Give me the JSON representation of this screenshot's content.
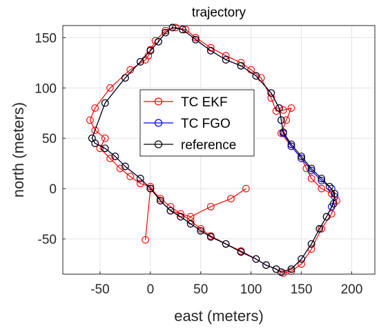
{
  "chart_data": {
    "type": "line",
    "title": "trajectory",
    "xlabel": "east (meters)",
    "ylabel": "north (meters)",
    "xlim": [
      -87,
      223
    ],
    "ylim": [
      -85,
      162
    ],
    "xticks": [
      -50,
      0,
      50,
      100,
      150,
      200
    ],
    "yticks": [
      -50,
      0,
      50,
      100,
      150
    ],
    "xtick_labels": [
      "-50",
      "0",
      "50",
      "100",
      "150",
      "200"
    ],
    "ytick_labels": [
      "-50",
      "0",
      "50",
      "100",
      "150"
    ],
    "grid": true,
    "legend_position": "center-left",
    "series": [
      {
        "name": "TC EKF",
        "color": "#ff0000",
        "x": [
          -5,
          0,
          10,
          20,
          30,
          40,
          50,
          60,
          75,
          90,
          105,
          115,
          125,
          132,
          140,
          150,
          160,
          170,
          180,
          185,
          180,
          170,
          160,
          155,
          150,
          140,
          130,
          135,
          140,
          132,
          125,
          120,
          110,
          100,
          90,
          75,
          60,
          45,
          35,
          25,
          15,
          5,
          0,
          -2,
          -5,
          -20,
          -40,
          -55,
          -60,
          -55,
          -45,
          -50,
          -40,
          -30,
          -20,
          -10,
          0,
          10,
          20,
          40,
          60,
          80,
          95
        ],
        "y": [
          -51,
          0,
          -10,
          -18,
          -25,
          -32,
          -40,
          -47,
          -55,
          -62,
          -70,
          -76,
          -80,
          -84,
          -82,
          -75,
          -60,
          -40,
          -25,
          -12,
          -5,
          0,
          10,
          20,
          30,
          42,
          55,
          68,
          80,
          78,
          77,
          90,
          110,
          118,
          125,
          132,
          140,
          150,
          158,
          160,
          157,
          147,
          138,
          132,
          128,
          118,
          100,
          80,
          68,
          58,
          50,
          40,
          30,
          20,
          12,
          5,
          2,
          -12,
          -22,
          -28,
          -18,
          -10,
          0
        ]
      },
      {
        "name": "TC FGO",
        "color": "#0000ff",
        "x": [
          0,
          10,
          20,
          30,
          40,
          50,
          60,
          75,
          90,
          105,
          115,
          125,
          130,
          140,
          150,
          160,
          168,
          175,
          180,
          183,
          180,
          170,
          160,
          150,
          140,
          132,
          130,
          128,
          120,
          105,
          90,
          75,
          60,
          45,
          32,
          22,
          15,
          8,
          0,
          -10,
          -25,
          -45,
          -58,
          -55,
          -45,
          -35,
          -25,
          -10,
          0
        ],
        "y": [
          0,
          -12,
          -22,
          -28,
          -35,
          -42,
          -48,
          -55,
          -63,
          -70,
          -76,
          -80,
          -83,
          -80,
          -70,
          -55,
          -40,
          -28,
          -18,
          -8,
          0,
          8,
          18,
          30,
          42,
          55,
          68,
          80,
          95,
          112,
          122,
          128,
          137,
          148,
          158,
          160,
          155,
          146,
          137,
          126,
          110,
          85,
          50,
          45,
          40,
          32,
          22,
          10,
          0
        ]
      },
      {
        "name": "reference",
        "color": "#000000",
        "x": [
          0,
          10,
          20,
          30,
          40,
          50,
          60,
          75,
          90,
          105,
          115,
          125,
          130,
          140,
          150,
          160,
          168,
          175,
          182,
          183,
          178,
          170,
          160,
          150,
          140,
          132,
          130,
          128,
          120,
          105,
          90,
          75,
          60,
          45,
          32,
          22,
          15,
          8,
          0,
          -10,
          -25,
          -45,
          -58,
          -55,
          -45,
          -35,
          -25,
          -10,
          0
        ],
        "y": [
          0,
          -12,
          -22,
          -28,
          -35,
          -42,
          -48,
          -55,
          -63,
          -70,
          -76,
          -80,
          -83,
          -80,
          -70,
          -55,
          -40,
          -28,
          -15,
          -5,
          2,
          10,
          20,
          32,
          44,
          56,
          68,
          80,
          95,
          112,
          122,
          128,
          137,
          148,
          158,
          160,
          155,
          146,
          137,
          126,
          110,
          85,
          50,
          45,
          40,
          32,
          22,
          10,
          0
        ]
      }
    ]
  }
}
